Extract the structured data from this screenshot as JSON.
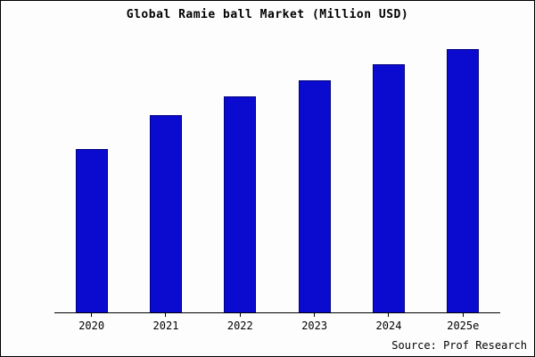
{
  "title": "Global Ramie ball Market (Million USD)",
  "source": "Source: Prof Research",
  "colors": {
    "bar_fill": "#0b0bd0",
    "bar_edge": "#000080",
    "axis": "#000000",
    "background": "#fdfdfd"
  },
  "chart_data": {
    "type": "bar",
    "categories": [
      "2020",
      "2021",
      "2022",
      "2023",
      "2024",
      "2025e"
    ],
    "values": [
      62,
      75,
      82,
      88,
      94,
      100
    ],
    "title": "Global Ramie ball Market (Million USD)",
    "xlabel": "",
    "ylabel": "",
    "ylim": [
      0,
      106
    ],
    "grid": false,
    "legend": false,
    "note": "No y-axis tick labels shown; values estimated relative to tallest bar = 100"
  }
}
